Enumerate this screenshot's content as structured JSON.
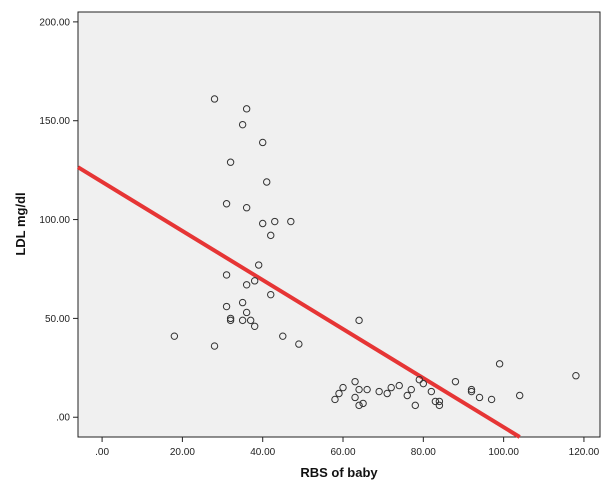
{
  "chart_data": {
    "type": "scatter",
    "title": "",
    "xlabel": "RBS of baby",
    "ylabel": "LDL mg/dl",
    "xlim": [
      -6,
      124
    ],
    "ylim": [
      -10,
      205
    ],
    "x_ticks": [
      0,
      20,
      40,
      60,
      80,
      100,
      120
    ],
    "x_tick_labels": [
      ".00",
      "20.00",
      "40.00",
      "60.00",
      "80.00",
      "100.00",
      "120.00"
    ],
    "y_ticks": [
      0,
      50,
      100,
      150,
      200
    ],
    "y_tick_labels": [
      ".00",
      "50.00",
      "100.00",
      "150.00",
      "200.00"
    ],
    "grid": false,
    "colors": {
      "plot_bg": "#f0f0f0",
      "marker": "#333333",
      "fit_line": "#e63535"
    },
    "series": [
      {
        "points": [
          [
            18,
            41
          ],
          [
            28,
            161
          ],
          [
            28,
            36
          ],
          [
            31,
            108
          ],
          [
            31,
            72
          ],
          [
            31,
            56
          ],
          [
            32,
            129
          ],
          [
            32,
            50
          ],
          [
            32,
            49
          ],
          [
            35,
            148
          ],
          [
            35,
            58
          ],
          [
            35,
            49
          ],
          [
            36,
            156
          ],
          [
            36,
            106
          ],
          [
            36,
            67
          ],
          [
            36,
            53
          ],
          [
            37,
            49
          ],
          [
            38,
            69
          ],
          [
            38,
            46
          ],
          [
            39,
            77
          ],
          [
            40,
            139
          ],
          [
            40,
            98
          ],
          [
            41,
            119
          ],
          [
            42,
            92
          ],
          [
            42,
            62
          ],
          [
            43,
            99
          ],
          [
            45,
            41
          ],
          [
            47,
            99
          ],
          [
            49,
            37
          ],
          [
            58,
            9
          ],
          [
            59,
            12
          ],
          [
            60,
            15
          ],
          [
            63,
            18
          ],
          [
            63,
            10
          ],
          [
            64,
            14
          ],
          [
            64,
            49
          ],
          [
            64,
            6
          ],
          [
            65,
            7
          ],
          [
            66,
            14
          ],
          [
            69,
            13
          ],
          [
            71,
            12
          ],
          [
            72,
            15
          ],
          [
            74,
            16
          ],
          [
            76,
            11
          ],
          [
            77,
            14
          ],
          [
            78,
            6
          ],
          [
            79,
            19
          ],
          [
            80,
            17
          ],
          [
            82,
            13
          ],
          [
            83,
            8
          ],
          [
            84,
            8
          ],
          [
            84,
            6
          ],
          [
            88,
            18
          ],
          [
            92,
            14
          ],
          [
            92,
            13
          ],
          [
            94,
            10
          ],
          [
            97,
            9
          ],
          [
            99,
            27
          ],
          [
            104,
            11
          ],
          [
            118,
            21
          ]
        ]
      }
    ],
    "fit_line": {
      "x": [
        -6,
        104
      ],
      "y": [
        126.5,
        -10
      ]
    }
  }
}
